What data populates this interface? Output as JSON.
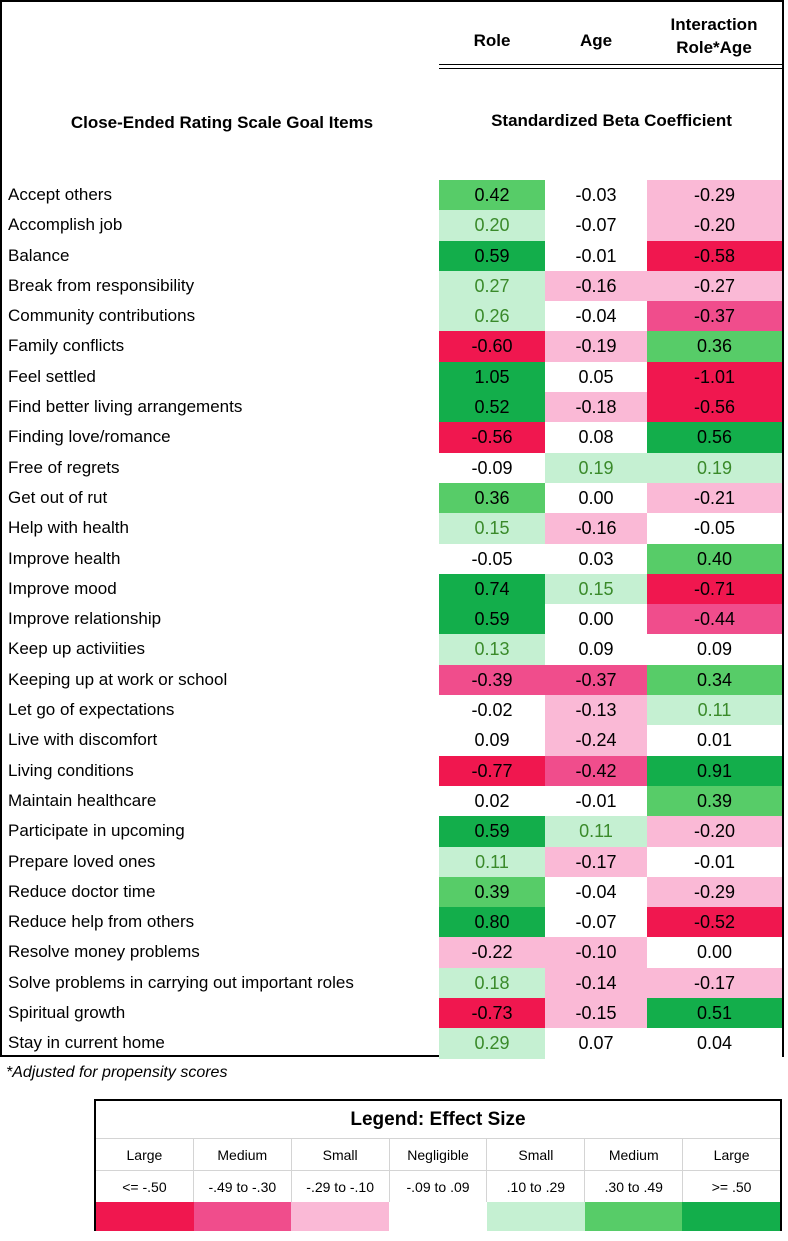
{
  "header": {
    "col_role": "Role",
    "col_age": "Age",
    "col_interaction_line1": "Interaction",
    "col_interaction_line2": "Role*Age",
    "items_title": "Close-Ended Rating Scale Goal Items",
    "beta_title": "Standardized Beta Coefficient"
  },
  "colors": {
    "large_neg": "#f0174f",
    "medium_neg": "#f04d8c",
    "small_neg": "#fab9d6",
    "negligible": "#ffffff",
    "small_pos": "#c5f0d2",
    "medium_pos": "#57cc68",
    "large_pos": "#13ae4b",
    "small_pos_text": "#3a8a2a"
  },
  "rows": [
    {
      "label": "Accept others",
      "role": "0.42",
      "age": "-0.03",
      "interaction": "-0.29"
    },
    {
      "label": "Accomplish job",
      "role": "0.20",
      "age": "-0.07",
      "interaction": "-0.20"
    },
    {
      "label": "Balance",
      "role": "0.59",
      "age": "-0.01",
      "interaction": "-0.58"
    },
    {
      "label": "Break from responsibility",
      "role": "0.27",
      "age": "-0.16",
      "interaction": "-0.27"
    },
    {
      "label": "Community contributions",
      "role": "0.26",
      "age": "-0.04",
      "interaction": "-0.37"
    },
    {
      "label": "Family conflicts",
      "role": "-0.60",
      "age": "-0.19",
      "interaction": "0.36"
    },
    {
      "label": "Feel settled",
      "role": "1.05",
      "age": "0.05",
      "interaction": "-1.01"
    },
    {
      "label": "Find better living arrangements",
      "role": "0.52",
      "age": "-0.18",
      "interaction": "-0.56"
    },
    {
      "label": "Finding love/romance",
      "role": "-0.56",
      "age": "0.08",
      "interaction": "0.56"
    },
    {
      "label": "Free of regrets",
      "role": "-0.09",
      "age": "0.19",
      "interaction": "0.19"
    },
    {
      "label": "Get out of rut",
      "role": "0.36",
      "age": "0.00",
      "interaction": "-0.21"
    },
    {
      "label": "Help with health",
      "role": "0.15",
      "age": "-0.16",
      "interaction": "-0.05"
    },
    {
      "label": "Improve health",
      "role": "-0.05",
      "age": "0.03",
      "interaction": "0.40"
    },
    {
      "label": "Improve mood",
      "role": "0.74",
      "age": "0.15",
      "interaction": "-0.71"
    },
    {
      "label": "Improve relationship",
      "role": "0.59",
      "age": "0.00",
      "interaction": "-0.44"
    },
    {
      "label": "Keep up activiities",
      "role": "0.13",
      "age": "0.09",
      "interaction": "0.09"
    },
    {
      "label": "Keeping up at work or school",
      "role": "-0.39",
      "age": "-0.37",
      "interaction": "0.34"
    },
    {
      "label": "Let go of expectations",
      "role": "-0.02",
      "age": "-0.13",
      "interaction": "0.11"
    },
    {
      "label": "Live with discomfort",
      "role": "0.09",
      "age": "-0.24",
      "interaction": "0.01"
    },
    {
      "label": "Living conditions",
      "role": "-0.77",
      "age": "-0.42",
      "interaction": "0.91"
    },
    {
      "label": "Maintain healthcare",
      "role": "0.02",
      "age": "-0.01",
      "interaction": "0.39"
    },
    {
      "label": "Participate in upcoming",
      "role": "0.59",
      "age": "0.11",
      "interaction": "-0.20"
    },
    {
      "label": "Prepare loved ones",
      "role": "0.11",
      "age": "-0.17",
      "interaction": "-0.01"
    },
    {
      "label": "Reduce doctor time",
      "role": "0.39",
      "age": "-0.04",
      "interaction": "-0.29"
    },
    {
      "label": "Reduce help from others",
      "role": "0.80",
      "age": "-0.07",
      "interaction": "-0.52"
    },
    {
      "label": "Resolve money problems",
      "role": "-0.22",
      "age": "-0.10",
      "interaction": "0.00"
    },
    {
      "label": "Solve problems in carrying out important roles",
      "role": "0.18",
      "age": "-0.14",
      "interaction": "-0.17"
    },
    {
      "label": "Spiritual growth",
      "role": "-0.73",
      "age": "-0.15",
      "interaction": "0.51"
    },
    {
      "label": "Stay in current home",
      "role": "0.29",
      "age": "0.07",
      "interaction": "0.04"
    }
  ],
  "footnote": "*Adjusted for propensity scores",
  "legend": {
    "title": "Legend:  Effect Size",
    "sizes": [
      "Large",
      "Medium",
      "Small",
      "Negligible",
      "Small",
      "Medium",
      "Large"
    ],
    "ranges": [
      "<= -.50",
      "-.49 to -.30",
      "-.29 to -.10",
      "-.09 to .09",
      ".10 to .29",
      ".30 to .49",
      ">= .50"
    ],
    "swatch_colors": [
      "#f0174f",
      "#f04d8c",
      "#fab9d6",
      "#ffffff",
      "#c5f0d2",
      "#57cc68",
      "#13ae4b"
    ]
  }
}
